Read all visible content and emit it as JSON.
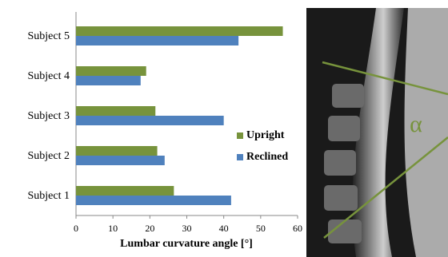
{
  "chart_data": {
    "type": "barh",
    "x_label": "Lumbar curvature angle [°]",
    "categories": [
      "Subject 1",
      "Subject 2",
      "Subject 3",
      "Subject 4",
      "Subject 5"
    ],
    "series": [
      {
        "name": "Upright",
        "color": "#77933c",
        "values": [
          26.5,
          22,
          21.5,
          19,
          56
        ]
      },
      {
        "name": "Reclined",
        "color": "#4f81bd",
        "values": [
          42,
          24,
          40,
          17.5,
          44
        ]
      }
    ],
    "xlim": [
      0,
      60
    ],
    "xticks": [
      0,
      10,
      20,
      30,
      40,
      50,
      60
    ],
    "grid": false,
    "legend": "right"
  },
  "image": {
    "annotation": "α"
  }
}
